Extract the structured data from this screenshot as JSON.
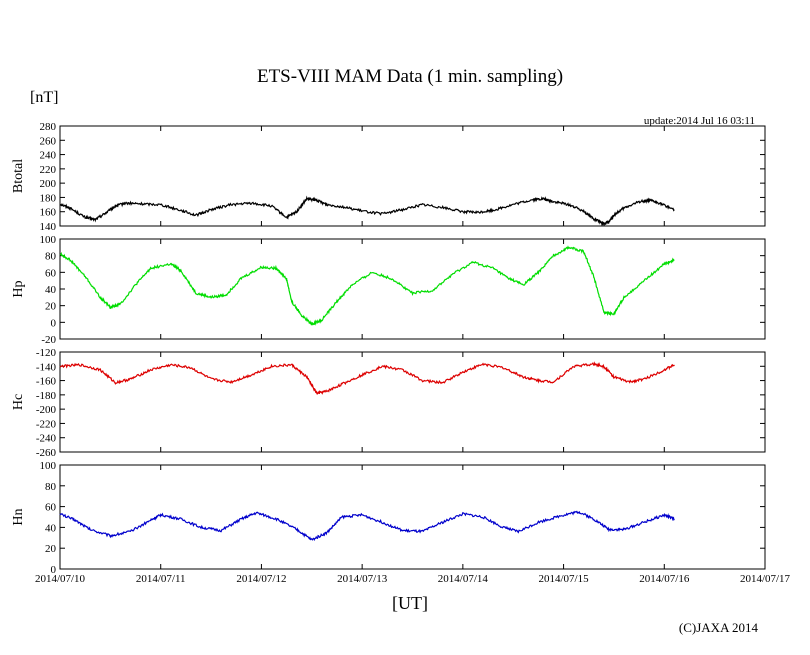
{
  "chart_data": {
    "type": "line",
    "title": "ETS-VIII MAM Data (1 min. sampling)",
    "unit": "[nT]",
    "update": "update:2014 Jul 16 03:11",
    "xlabel": "[UT]",
    "credit": "(C)JAXA 2014",
    "x_ticks": [
      "2014/07/10",
      "2014/07/11",
      "2014/07/12",
      "2014/07/13",
      "2014/07/14",
      "2014/07/15",
      "2014/07/16",
      "2014/07/17"
    ],
    "xlim": [
      0,
      7
    ],
    "grid": false,
    "panels": [
      {
        "ylabel": "Btotal",
        "color": "#000000",
        "ylim": [
          140,
          280
        ],
        "yticks": [
          "140",
          "160",
          "180",
          "200",
          "220",
          "240",
          "260",
          "280"
        ],
        "ytick_values": [
          140,
          160,
          180,
          200,
          220,
          240,
          260,
          280
        ],
        "x": [
          0,
          0.1,
          0.25,
          0.35,
          0.45,
          0.55,
          0.65,
          0.8,
          1.0,
          1.2,
          1.35,
          1.5,
          1.7,
          1.9,
          2.1,
          2.25,
          2.35,
          2.45,
          2.55,
          2.65,
          2.8,
          3.0,
          3.2,
          3.4,
          3.6,
          3.8,
          4.0,
          4.15,
          4.3,
          4.5,
          4.7,
          4.8,
          4.9,
          5.05,
          5.2,
          5.3,
          5.4,
          5.45,
          5.5,
          5.6,
          5.75,
          5.85,
          5.95,
          6.1
        ],
        "y": [
          171,
          165,
          152,
          149,
          158,
          168,
          172,
          171,
          170,
          162,
          155,
          163,
          170,
          172,
          168,
          152,
          160,
          178,
          176,
          170,
          167,
          161,
          157,
          163,
          170,
          166,
          160,
          159,
          162,
          170,
          177,
          178,
          174,
          170,
          161,
          150,
          143,
          146,
          155,
          165,
          174,
          176,
          172,
          163
        ]
      },
      {
        "ylabel": "Hp",
        "color": "#00dd00",
        "ylim": [
          -20,
          100
        ],
        "yticks": [
          "-20",
          "0",
          "20",
          "40",
          "60",
          "80",
          "100"
        ],
        "ytick_values": [
          -20,
          0,
          20,
          40,
          60,
          80,
          100
        ],
        "x": [
          0,
          0.1,
          0.25,
          0.4,
          0.5,
          0.6,
          0.75,
          0.9,
          1.1,
          1.2,
          1.35,
          1.5,
          1.65,
          1.8,
          2.0,
          2.15,
          2.25,
          2.3,
          2.4,
          2.5,
          2.6,
          2.75,
          2.9,
          3.1,
          3.3,
          3.5,
          3.7,
          3.9,
          4.1,
          4.3,
          4.45,
          4.6,
          4.75,
          4.9,
          5.05,
          5.2,
          5.3,
          5.4,
          5.5,
          5.6,
          5.8,
          6.0,
          6.1
        ],
        "y": [
          82,
          75,
          55,
          30,
          18,
          22,
          45,
          65,
          70,
          62,
          35,
          30,
          33,
          53,
          66,
          65,
          52,
          25,
          8,
          -2,
          3,
          25,
          45,
          60,
          52,
          35,
          38,
          58,
          72,
          65,
          53,
          45,
          60,
          80,
          90,
          85,
          55,
          12,
          10,
          30,
          50,
          70,
          75
        ]
      },
      {
        "ylabel": "Hc",
        "color": "#dd0000",
        "ylim": [
          -260,
          -120
        ],
        "yticks": [
          "-260",
          "-240",
          "-220",
          "-200",
          "-180",
          "-160",
          "-140",
          "-120"
        ],
        "ytick_values": [
          -260,
          -240,
          -220,
          -200,
          -180,
          -160,
          -140,
          -120
        ],
        "x": [
          0,
          0.2,
          0.4,
          0.55,
          0.7,
          0.9,
          1.1,
          1.3,
          1.5,
          1.7,
          1.9,
          2.1,
          2.3,
          2.45,
          2.55,
          2.65,
          2.8,
          3.0,
          3.2,
          3.4,
          3.6,
          3.8,
          4.0,
          4.2,
          4.4,
          4.6,
          4.75,
          4.9,
          5.1,
          5.3,
          5.4,
          5.5,
          5.65,
          5.8,
          6.0,
          6.1
        ],
        "y": [
          -140,
          -138,
          -145,
          -163,
          -158,
          -145,
          -138,
          -142,
          -158,
          -162,
          -152,
          -140,
          -138,
          -155,
          -178,
          -175,
          -165,
          -152,
          -140,
          -145,
          -160,
          -163,
          -148,
          -137,
          -142,
          -155,
          -160,
          -162,
          -140,
          -137,
          -140,
          -155,
          -162,
          -158,
          -145,
          -138
        ]
      },
      {
        "ylabel": "Hn",
        "color": "#0000cc",
        "ylim": [
          0,
          100
        ],
        "yticks": [
          "0",
          "20",
          "40",
          "60",
          "80",
          "100"
        ],
        "ytick_values": [
          0,
          20,
          40,
          60,
          80,
          100
        ],
        "x": [
          0,
          0.15,
          0.3,
          0.5,
          0.7,
          0.9,
          1.0,
          1.2,
          1.4,
          1.6,
          1.8,
          1.95,
          2.15,
          2.35,
          2.5,
          2.65,
          2.8,
          3.0,
          3.2,
          3.4,
          3.6,
          3.8,
          4.0,
          4.2,
          4.4,
          4.55,
          4.75,
          5.0,
          5.15,
          5.3,
          5.45,
          5.6,
          5.8,
          6.0,
          6.1
        ],
        "y": [
          53,
          47,
          38,
          32,
          36,
          47,
          52,
          48,
          40,
          37,
          48,
          54,
          48,
          38,
          28,
          35,
          50,
          52,
          45,
          37,
          36,
          45,
          53,
          50,
          40,
          36,
          45,
          52,
          55,
          48,
          38,
          38,
          45,
          52,
          48
        ]
      }
    ]
  }
}
